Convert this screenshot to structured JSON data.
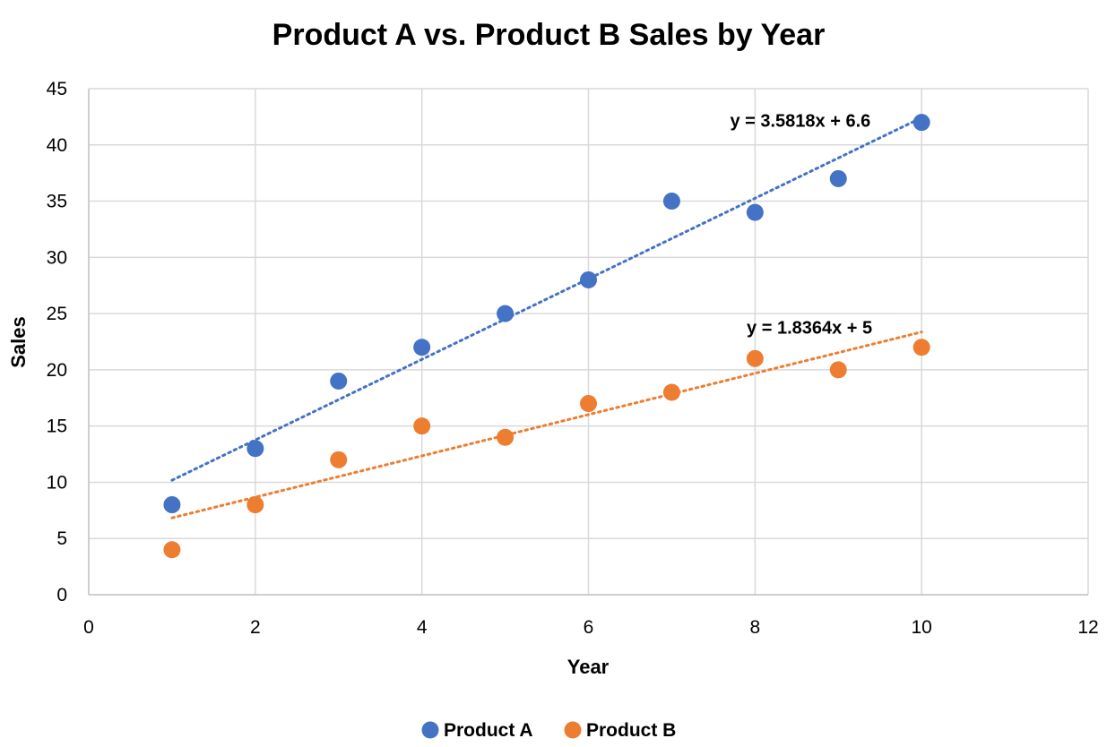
{
  "chart_data": {
    "type": "scatter",
    "title": "Product A vs. Product B Sales by Year",
    "xlabel": "Year",
    "ylabel": "Sales",
    "xlim": [
      0,
      12
    ],
    "ylim": [
      0,
      45
    ],
    "x_ticks": [
      0,
      2,
      4,
      6,
      8,
      10,
      12
    ],
    "y_ticks": [
      0,
      5,
      10,
      15,
      20,
      25,
      30,
      35,
      40,
      45
    ],
    "grid": true,
    "legend_position": "bottom",
    "series": [
      {
        "name": "Product A",
        "color": "#4472C4",
        "x": [
          1,
          2,
          3,
          4,
          5,
          6,
          7,
          8,
          9,
          10
        ],
        "y": [
          8,
          13,
          19,
          22,
          25,
          28,
          35,
          34,
          37,
          42
        ],
        "trendline": {
          "type": "linear",
          "slope": 3.5818,
          "intercept": 6.6,
          "x_range": [
            1,
            10
          ],
          "equation": "y = 3.5818x + 6.6"
        }
      },
      {
        "name": "Product B",
        "color": "#ED7D31",
        "x": [
          1,
          2,
          3,
          4,
          5,
          6,
          7,
          8,
          9,
          10
        ],
        "y": [
          4,
          8,
          12,
          15,
          14,
          17,
          18,
          21,
          20,
          22
        ],
        "trendline": {
          "type": "linear",
          "slope": 1.8364,
          "intercept": 5,
          "x_range": [
            1,
            10
          ],
          "equation": "y = 1.8364x + 5"
        }
      }
    ]
  }
}
